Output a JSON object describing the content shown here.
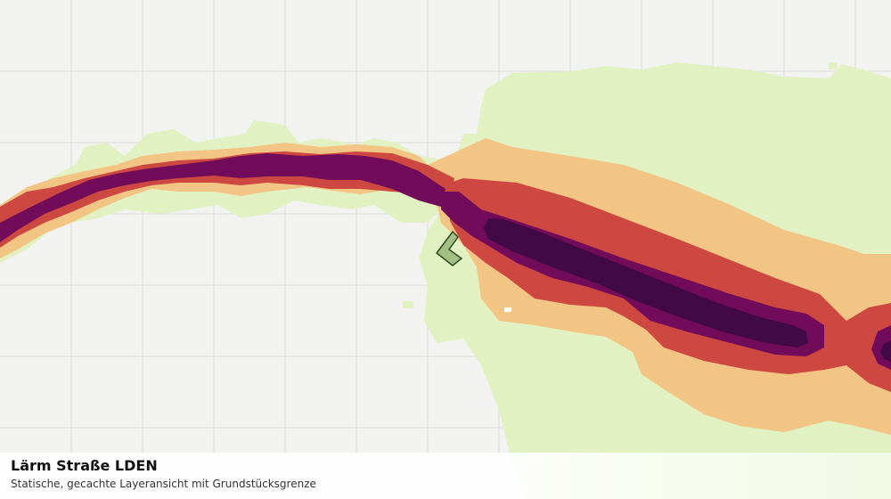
{
  "caption": {
    "title": "Lärm Straße LDEN",
    "subtitle": "Statische, gecachte Layeransicht mit Grundstücksgrenze"
  },
  "layer": {
    "name": "noise-road-lden",
    "band_colors": {
      "lowest": "#e2f1c2",
      "low": "#f3c585",
      "mid": "#cc4840",
      "high": "#720c5a",
      "highest": "#410a44"
    },
    "parcel_fill": "#a3bf84",
    "parcel_stroke": "#2f4a22",
    "grid_color": "#dcdedb",
    "background": "#f2f3f1"
  }
}
